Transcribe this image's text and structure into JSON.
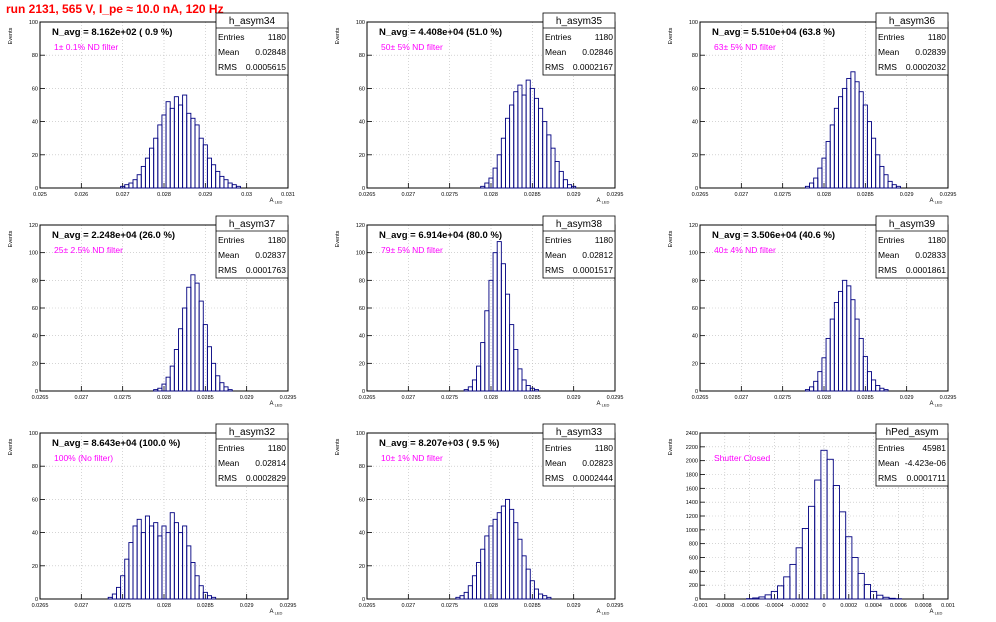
{
  "run_title": "run 2131,   565 V, I_pe ≈ 10.0 nA, 120 Hz",
  "stats_labels": {
    "entries": "Entries",
    "mean": "Mean",
    "rms": "RMS"
  },
  "ylabel": "Events",
  "xlabel": "A",
  "xlabel_sub": "LED",
  "colors": {
    "histogram": "#000080",
    "annotation": "#ff00ff",
    "title": "#ff0000",
    "grid": "#bbbbbb"
  },
  "chart_data": [
    {
      "type": "bar",
      "name": "h_asym34",
      "title": "h_asym34",
      "navg": "N_avg = 8.162e+02 ( 0.9 %)",
      "filter": "1± 0.1% ND filter",
      "entries": "1180",
      "mean": "0.02848",
      "rms": "0.0005615",
      "xlim": [
        0.025,
        0.031
      ],
      "ylim": [
        0,
        100
      ],
      "xticks": [
        "0.025",
        "0.026",
        "0.027",
        "0.028",
        "0.029",
        "0.03",
        "0.031"
      ],
      "yticks": [
        "0",
        "20",
        "40",
        "60",
        "80",
        "100"
      ],
      "bins": [
        {
          "x": 0.027,
          "y": 1
        },
        {
          "x": 0.0271,
          "y": 2
        },
        {
          "x": 0.0272,
          "y": 3
        },
        {
          "x": 0.0273,
          "y": 5
        },
        {
          "x": 0.0274,
          "y": 8
        },
        {
          "x": 0.0275,
          "y": 13
        },
        {
          "x": 0.0276,
          "y": 18
        },
        {
          "x": 0.0277,
          "y": 24
        },
        {
          "x": 0.0278,
          "y": 30
        },
        {
          "x": 0.0279,
          "y": 38
        },
        {
          "x": 0.028,
          "y": 44
        },
        {
          "x": 0.0281,
          "y": 52
        },
        {
          "x": 0.0282,
          "y": 48
        },
        {
          "x": 0.0283,
          "y": 55
        },
        {
          "x": 0.0284,
          "y": 50
        },
        {
          "x": 0.0285,
          "y": 56
        },
        {
          "x": 0.0286,
          "y": 45
        },
        {
          "x": 0.0287,
          "y": 42
        },
        {
          "x": 0.0288,
          "y": 38
        },
        {
          "x": 0.0289,
          "y": 30
        },
        {
          "x": 0.029,
          "y": 26
        },
        {
          "x": 0.0291,
          "y": 18
        },
        {
          "x": 0.0292,
          "y": 14
        },
        {
          "x": 0.0293,
          "y": 10
        },
        {
          "x": 0.0294,
          "y": 7
        },
        {
          "x": 0.0295,
          "y": 5
        },
        {
          "x": 0.0296,
          "y": 3
        },
        {
          "x": 0.0297,
          "y": 2
        },
        {
          "x": 0.0298,
          "y": 1
        }
      ]
    },
    {
      "type": "bar",
      "name": "h_asym35",
      "title": "h_asym35",
      "navg": "N_avg = 4.408e+04 (51.0 %)",
      "filter": "50± 5% ND filter",
      "entries": "1180",
      "mean": "0.02846",
      "rms": "0.0002167",
      "xlim": [
        0.0265,
        0.0295
      ],
      "ylim": [
        0,
        100
      ],
      "xticks": [
        "0.0265",
        "0.027",
        "0.0275",
        "0.028",
        "0.0285",
        "0.029",
        "0.0295"
      ],
      "yticks": [
        "0",
        "20",
        "40",
        "60",
        "80",
        "100"
      ],
      "bins": [
        {
          "x": 0.0279,
          "y": 1
        },
        {
          "x": 0.02795,
          "y": 3
        },
        {
          "x": 0.028,
          "y": 6
        },
        {
          "x": 0.02805,
          "y": 12
        },
        {
          "x": 0.0281,
          "y": 20
        },
        {
          "x": 0.02815,
          "y": 30
        },
        {
          "x": 0.0282,
          "y": 42
        },
        {
          "x": 0.02825,
          "y": 50
        },
        {
          "x": 0.0283,
          "y": 58
        },
        {
          "x": 0.02835,
          "y": 62
        },
        {
          "x": 0.0284,
          "y": 56
        },
        {
          "x": 0.02845,
          "y": 65
        },
        {
          "x": 0.0285,
          "y": 60
        },
        {
          "x": 0.02855,
          "y": 54
        },
        {
          "x": 0.0286,
          "y": 48
        },
        {
          "x": 0.02865,
          "y": 40
        },
        {
          "x": 0.0287,
          "y": 32
        },
        {
          "x": 0.02875,
          "y": 24
        },
        {
          "x": 0.0288,
          "y": 16
        },
        {
          "x": 0.02885,
          "y": 10
        },
        {
          "x": 0.0289,
          "y": 5
        },
        {
          "x": 0.02895,
          "y": 2
        },
        {
          "x": 0.029,
          "y": 1
        }
      ]
    },
    {
      "type": "bar",
      "name": "h_asym36",
      "title": "h_asym36",
      "navg": "N_avg = 5.510e+04 (63.8 %)",
      "filter": "63± 5% ND filter",
      "entries": "1180",
      "mean": "0.02839",
      "rms": "0.0002032",
      "xlim": [
        0.0265,
        0.0295
      ],
      "ylim": [
        0,
        100
      ],
      "xticks": [
        "0.0265",
        "0.027",
        "0.0275",
        "0.028",
        "0.0285",
        "0.029",
        "0.0295"
      ],
      "yticks": [
        "0",
        "20",
        "40",
        "60",
        "80",
        "100"
      ],
      "bins": [
        {
          "x": 0.0278,
          "y": 1
        },
        {
          "x": 0.02785,
          "y": 3
        },
        {
          "x": 0.0279,
          "y": 6
        },
        {
          "x": 0.02795,
          "y": 12
        },
        {
          "x": 0.028,
          "y": 18
        },
        {
          "x": 0.02805,
          "y": 28
        },
        {
          "x": 0.0281,
          "y": 38
        },
        {
          "x": 0.02815,
          "y": 48
        },
        {
          "x": 0.0282,
          "y": 55
        },
        {
          "x": 0.02825,
          "y": 60
        },
        {
          "x": 0.0283,
          "y": 66
        },
        {
          "x": 0.02835,
          "y": 70
        },
        {
          "x": 0.0284,
          "y": 64
        },
        {
          "x": 0.02845,
          "y": 58
        },
        {
          "x": 0.0285,
          "y": 50
        },
        {
          "x": 0.02855,
          "y": 40
        },
        {
          "x": 0.0286,
          "y": 30
        },
        {
          "x": 0.02865,
          "y": 20
        },
        {
          "x": 0.0287,
          "y": 13
        },
        {
          "x": 0.02875,
          "y": 8
        },
        {
          "x": 0.0288,
          "y": 4
        },
        {
          "x": 0.02885,
          "y": 2
        },
        {
          "x": 0.0289,
          "y": 1
        }
      ]
    },
    {
      "type": "bar",
      "name": "h_asym37",
      "title": "h_asym37",
      "navg": "N_avg = 2.248e+04 (26.0 %)",
      "filter": "25± 2.5% ND filter",
      "entries": "1180",
      "mean": "0.02837",
      "rms": "0.0001763",
      "xlim": [
        0.0265,
        0.0295
      ],
      "ylim": [
        0,
        120
      ],
      "xticks": [
        "0.0265",
        "0.027",
        "0.0275",
        "0.028",
        "0.0285",
        "0.029",
        "0.0295"
      ],
      "yticks": [
        "0",
        "20",
        "40",
        "60",
        "80",
        "100",
        "120"
      ],
      "bins": [
        {
          "x": 0.0279,
          "y": 1
        },
        {
          "x": 0.02795,
          "y": 2
        },
        {
          "x": 0.028,
          "y": 5
        },
        {
          "x": 0.02805,
          "y": 10
        },
        {
          "x": 0.0281,
          "y": 18
        },
        {
          "x": 0.02815,
          "y": 30
        },
        {
          "x": 0.0282,
          "y": 45
        },
        {
          "x": 0.02825,
          "y": 60
        },
        {
          "x": 0.0283,
          "y": 75
        },
        {
          "x": 0.02835,
          "y": 84
        },
        {
          "x": 0.0284,
          "y": 78
        },
        {
          "x": 0.02845,
          "y": 65
        },
        {
          "x": 0.0285,
          "y": 48
        },
        {
          "x": 0.02855,
          "y": 32
        },
        {
          "x": 0.0286,
          "y": 20
        },
        {
          "x": 0.02865,
          "y": 11
        },
        {
          "x": 0.0287,
          "y": 6
        },
        {
          "x": 0.02875,
          "y": 3
        },
        {
          "x": 0.0288,
          "y": 1
        }
      ]
    },
    {
      "type": "bar",
      "name": "h_asym38",
      "title": "h_asym38",
      "navg": "N_avg = 6.914e+04 (80.0 %)",
      "filter": "79± 5% ND filter",
      "entries": "1180",
      "mean": "0.02812",
      "rms": "0.0001517",
      "xlim": [
        0.0265,
        0.0295
      ],
      "ylim": [
        0,
        120
      ],
      "xticks": [
        "0.0265",
        "0.027",
        "0.0275",
        "0.028",
        "0.0285",
        "0.029",
        "0.0295"
      ],
      "yticks": [
        "0",
        "20",
        "40",
        "60",
        "80",
        "100",
        "120"
      ],
      "bins": [
        {
          "x": 0.0277,
          "y": 1
        },
        {
          "x": 0.02775,
          "y": 3
        },
        {
          "x": 0.0278,
          "y": 8
        },
        {
          "x": 0.02785,
          "y": 18
        },
        {
          "x": 0.0279,
          "y": 35
        },
        {
          "x": 0.02795,
          "y": 58
        },
        {
          "x": 0.028,
          "y": 80
        },
        {
          "x": 0.02805,
          "y": 100
        },
        {
          "x": 0.0281,
          "y": 108
        },
        {
          "x": 0.02815,
          "y": 92
        },
        {
          "x": 0.0282,
          "y": 70
        },
        {
          "x": 0.02825,
          "y": 48
        },
        {
          "x": 0.0283,
          "y": 30
        },
        {
          "x": 0.02835,
          "y": 16
        },
        {
          "x": 0.0284,
          "y": 8
        },
        {
          "x": 0.02845,
          "y": 4
        },
        {
          "x": 0.0285,
          "y": 2
        },
        {
          "x": 0.02855,
          "y": 1
        }
      ]
    },
    {
      "type": "bar",
      "name": "h_asym39",
      "title": "h_asym39",
      "navg": "N_avg = 3.506e+04 (40.6 %)",
      "filter": "40± 4% ND filter",
      "entries": "1180",
      "mean": "0.02833",
      "rms": "0.0001861",
      "xlim": [
        0.0265,
        0.0295
      ],
      "ylim": [
        0,
        120
      ],
      "xticks": [
        "0.0265",
        "0.027",
        "0.0275",
        "0.028",
        "0.0285",
        "0.029",
        "0.0295"
      ],
      "yticks": [
        "0",
        "20",
        "40",
        "60",
        "80",
        "100",
        "120"
      ],
      "bins": [
        {
          "x": 0.0278,
          "y": 1
        },
        {
          "x": 0.02785,
          "y": 3
        },
        {
          "x": 0.0279,
          "y": 7
        },
        {
          "x": 0.02795,
          "y": 14
        },
        {
          "x": 0.028,
          "y": 24
        },
        {
          "x": 0.02805,
          "y": 38
        },
        {
          "x": 0.0281,
          "y": 52
        },
        {
          "x": 0.02815,
          "y": 64
        },
        {
          "x": 0.0282,
          "y": 72
        },
        {
          "x": 0.02825,
          "y": 80
        },
        {
          "x": 0.0283,
          "y": 76
        },
        {
          "x": 0.02835,
          "y": 66
        },
        {
          "x": 0.0284,
          "y": 52
        },
        {
          "x": 0.02845,
          "y": 38
        },
        {
          "x": 0.0285,
          "y": 25
        },
        {
          "x": 0.02855,
          "y": 14
        },
        {
          "x": 0.0286,
          "y": 8
        },
        {
          "x": 0.02865,
          "y": 4
        },
        {
          "x": 0.0287,
          "y": 2
        },
        {
          "x": 0.02875,
          "y": 1
        }
      ]
    },
    {
      "type": "bar",
      "name": "h_asym32",
      "title": "h_asym32",
      "navg": "N_avg = 8.643e+04 (100.0 %)",
      "filter": "100% (No filter)",
      "entries": "1180",
      "mean": "0.02814",
      "rms": "0.0002829",
      "xlim": [
        0.0265,
        0.0295
      ],
      "ylim": [
        0,
        100
      ],
      "xticks": [
        "0.0265",
        "0.027",
        "0.0275",
        "0.028",
        "0.0285",
        "0.029",
        "0.0295"
      ],
      "yticks": [
        "0",
        "20",
        "40",
        "60",
        "80",
        "100"
      ],
      "bins": [
        {
          "x": 0.02735,
          "y": 1
        },
        {
          "x": 0.0274,
          "y": 3
        },
        {
          "x": 0.02745,
          "y": 7
        },
        {
          "x": 0.0275,
          "y": 14
        },
        {
          "x": 0.02755,
          "y": 24
        },
        {
          "x": 0.0276,
          "y": 34
        },
        {
          "x": 0.02765,
          "y": 44
        },
        {
          "x": 0.0277,
          "y": 48
        },
        {
          "x": 0.02775,
          "y": 40
        },
        {
          "x": 0.0278,
          "y": 50
        },
        {
          "x": 0.02785,
          "y": 44
        },
        {
          "x": 0.0279,
          "y": 46
        },
        {
          "x": 0.02795,
          "y": 38
        },
        {
          "x": 0.028,
          "y": 44
        },
        {
          "x": 0.02805,
          "y": 40
        },
        {
          "x": 0.0281,
          "y": 52
        },
        {
          "x": 0.02815,
          "y": 46
        },
        {
          "x": 0.0282,
          "y": 40
        },
        {
          "x": 0.02825,
          "y": 44
        },
        {
          "x": 0.0283,
          "y": 32
        },
        {
          "x": 0.02835,
          "y": 22
        },
        {
          "x": 0.0284,
          "y": 14
        },
        {
          "x": 0.02845,
          "y": 8
        },
        {
          "x": 0.0285,
          "y": 4
        },
        {
          "x": 0.02855,
          "y": 2
        },
        {
          "x": 0.0286,
          "y": 1
        }
      ]
    },
    {
      "type": "bar",
      "name": "h_asym33",
      "title": "h_asym33",
      "navg": "N_avg = 8.207e+03 ( 9.5 %)",
      "filter": "10± 1% ND filter",
      "entries": "1180",
      "mean": "0.02823",
      "rms": "0.0002444",
      "xlim": [
        0.0265,
        0.0295
      ],
      "ylim": [
        0,
        100
      ],
      "xticks": [
        "0.0265",
        "0.027",
        "0.0275",
        "0.028",
        "0.0285",
        "0.029",
        "0.0295"
      ],
      "yticks": [
        "0",
        "20",
        "40",
        "60",
        "80",
        "100"
      ],
      "bins": [
        {
          "x": 0.0276,
          "y": 1
        },
        {
          "x": 0.02765,
          "y": 2
        },
        {
          "x": 0.0277,
          "y": 4
        },
        {
          "x": 0.02775,
          "y": 8
        },
        {
          "x": 0.0278,
          "y": 14
        },
        {
          "x": 0.02785,
          "y": 22
        },
        {
          "x": 0.0279,
          "y": 30
        },
        {
          "x": 0.02795,
          "y": 38
        },
        {
          "x": 0.028,
          "y": 44
        },
        {
          "x": 0.02805,
          "y": 48
        },
        {
          "x": 0.0281,
          "y": 52
        },
        {
          "x": 0.02815,
          "y": 56
        },
        {
          "x": 0.0282,
          "y": 60
        },
        {
          "x": 0.02825,
          "y": 54
        },
        {
          "x": 0.0283,
          "y": 46
        },
        {
          "x": 0.02835,
          "y": 36
        },
        {
          "x": 0.0284,
          "y": 26
        },
        {
          "x": 0.02845,
          "y": 18
        },
        {
          "x": 0.0285,
          "y": 11
        },
        {
          "x": 0.02855,
          "y": 6
        },
        {
          "x": 0.0286,
          "y": 3
        },
        {
          "x": 0.02865,
          "y": 2
        },
        {
          "x": 0.0287,
          "y": 1
        }
      ]
    },
    {
      "type": "bar",
      "name": "hPed_asym",
      "title": "hPed_asym",
      "navg": "",
      "filter": "Shutter Closed",
      "entries": "45981",
      "mean": "-4.423e-06",
      "rms": "0.0001711",
      "xlim": [
        -0.001,
        0.001
      ],
      "ylim": [
        0,
        2400
      ],
      "xticks": [
        "-0.001",
        "-0.0008",
        "-0.0006",
        "-0.0004",
        "-0.0002",
        "0",
        "0.0002",
        "0.0004",
        "0.0006",
        "0.0008",
        "0.001"
      ],
      "yticks": [
        "0",
        "200",
        "400",
        "600",
        "800",
        "1000",
        "1200",
        "1400",
        "1600",
        "1800",
        "2000",
        "2200",
        "2400"
      ],
      "bins": [
        {
          "x": -0.0006,
          "y": 5
        },
        {
          "x": -0.00055,
          "y": 15
        },
        {
          "x": -0.0005,
          "y": 30
        },
        {
          "x": -0.00045,
          "y": 60
        },
        {
          "x": -0.0004,
          "y": 110
        },
        {
          "x": -0.00035,
          "y": 190
        },
        {
          "x": -0.0003,
          "y": 320
        },
        {
          "x": -0.00025,
          "y": 500
        },
        {
          "x": -0.0002,
          "y": 740
        },
        {
          "x": -0.00015,
          "y": 1020
        },
        {
          "x": -0.0001,
          "y": 1340
        },
        {
          "x": -5e-05,
          "y": 1720
        },
        {
          "x": 0.0,
          "y": 2150
        },
        {
          "x": 5e-05,
          "y": 2020
        },
        {
          "x": 0.0001,
          "y": 1640
        },
        {
          "x": 0.00015,
          "y": 1260
        },
        {
          "x": 0.0002,
          "y": 900
        },
        {
          "x": 0.00025,
          "y": 600
        },
        {
          "x": 0.0003,
          "y": 370
        },
        {
          "x": 0.00035,
          "y": 210
        },
        {
          "x": 0.0004,
          "y": 110
        },
        {
          "x": 0.00045,
          "y": 55
        },
        {
          "x": 0.0005,
          "y": 25
        },
        {
          "x": 0.00055,
          "y": 10
        },
        {
          "x": 0.0006,
          "y": 4
        }
      ]
    }
  ]
}
